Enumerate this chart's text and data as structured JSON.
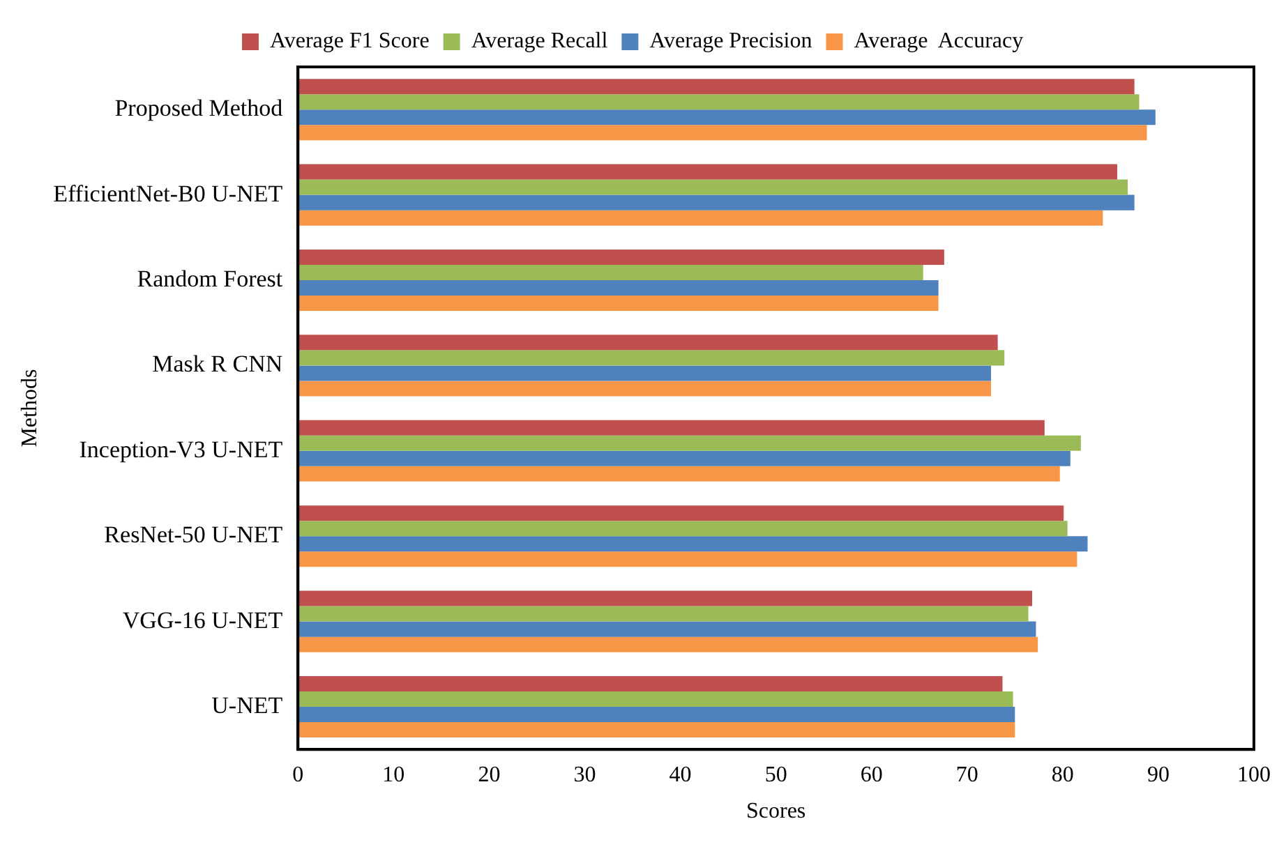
{
  "chart_data": {
    "type": "bar",
    "orientation": "horizontal",
    "xlabel": "Scores",
    "ylabel": "Methods",
    "categories": [
      "Proposed Method",
      "EfficientNet-B0 U-NET",
      "Random Forest",
      "Mask R CNN",
      "Inception-V3 U-NET",
      "ResNet-50 U-NET",
      "VGG-16 U-NET",
      "U-NET"
    ],
    "series": [
      {
        "name": "Average F1 Score",
        "color": "#c0504d",
        "values": [
          87.5,
          85.7,
          67.6,
          73.2,
          78.1,
          80.1,
          76.8,
          73.7
        ]
      },
      {
        "name": "Average Recall",
        "color": "#9bbb59",
        "values": [
          88.0,
          86.8,
          65.4,
          73.9,
          81.9,
          80.5,
          76.4,
          74.8
        ]
      },
      {
        "name": "Average Precision",
        "color": "#4f81bd",
        "values": [
          89.7,
          87.5,
          67.0,
          72.5,
          80.8,
          82.6,
          77.2,
          75.0
        ]
      },
      {
        "name": "Average  Accuracy",
        "color": "#f79646",
        "values": [
          88.8,
          84.2,
          67.0,
          72.5,
          79.7,
          81.5,
          77.4,
          75.0
        ]
      }
    ],
    "xlim": [
      0,
      100
    ],
    "xticks": [
      0,
      10,
      20,
      30,
      40,
      50,
      60,
      70,
      80,
      90,
      100
    ],
    "grid": false,
    "legend": "top"
  }
}
